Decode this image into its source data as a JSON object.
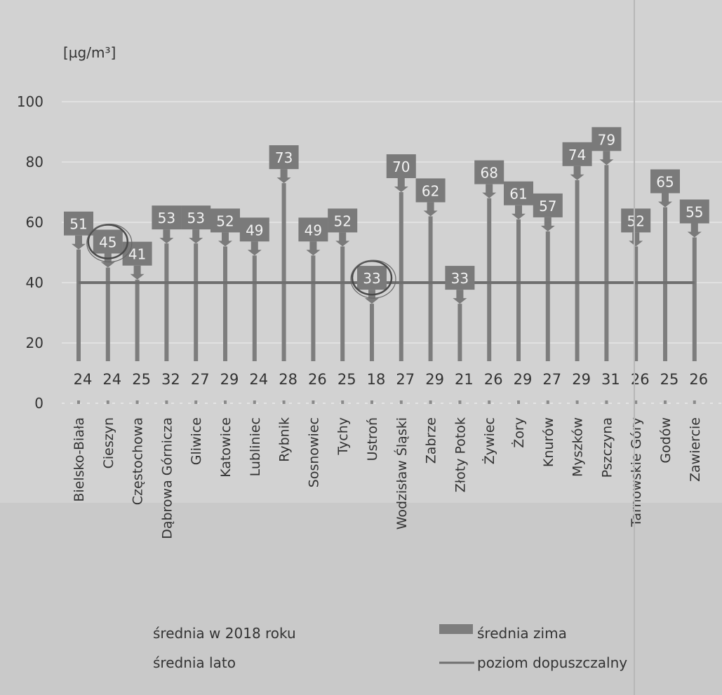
{
  "chart_data": {
    "type": "bar",
    "ylabel": "[µg/m³]",
    "ylim": [
      0,
      100
    ],
    "yticks": [
      0,
      20,
      40,
      60,
      80,
      100
    ],
    "grid": true,
    "categories": [
      "Bielsko-Biała",
      "Cieszyn",
      "Częstochowa",
      "Dąbrowa Górnicza",
      "Gliwice",
      "Katowice",
      "Lubliniec",
      "Rybnik",
      "Sosnowiec",
      "Tychy",
      "Ustroń",
      "Wodzisław Śląski",
      "Zabrze",
      "Złoty Potok",
      "Żywiec",
      "Żory",
      "Knurów",
      "Myszków",
      "Pszczyna",
      "Tarnowskie Góry",
      "Godów",
      "Zawiercie"
    ],
    "series": [
      {
        "name": "średnia zima",
        "values": [
          51,
          45,
          41,
          53,
          53,
          52,
          49,
          73,
          49,
          52,
          33,
          70,
          62,
          33,
          68,
          61,
          57,
          74,
          79,
          52,
          65,
          55
        ]
      },
      {
        "name": "średnia lato",
        "values": [
          24,
          24,
          25,
          32,
          27,
          29,
          24,
          28,
          26,
          25,
          18,
          27,
          29,
          21,
          26,
          29,
          27,
          29,
          31,
          26,
          25,
          26
        ]
      }
    ],
    "winter_labels": [
      "51",
      "45",
      "41",
      "53",
      "53",
      "52",
      "49",
      "73",
      "49",
      "52",
      "33",
      "70",
      "62",
      "33",
      "68",
      "61",
      "57",
      "74",
      "79",
      "52",
      "65",
      "55"
    ],
    "summer_labels": [
      "24",
      "24",
      "25",
      "32",
      "27",
      "29",
      "24",
      "28",
      "26",
      "25",
      "18",
      "27",
      "29",
      "21",
      "26",
      "29",
      "27",
      "29",
      "31",
      "26",
      "25",
      "26"
    ],
    "reference_line": {
      "name": "poziom dopuszczalny",
      "value": 40
    },
    "legend": {
      "position": "bottom",
      "items": [
        {
          "label": "średnia w 2018 roku",
          "type": "swatch-none"
        },
        {
          "label": "średnia zima",
          "type": "bar"
        },
        {
          "label": "średnia lato",
          "type": "swatch-none"
        },
        {
          "label": "poziom dopuszczalny",
          "type": "line"
        }
      ]
    },
    "colors": {
      "bar": "#7d7d7d",
      "label_box": "#7a7a7a",
      "line": "#6f6f6f",
      "grid": "#e6e6e6",
      "background": "#c9c9c9"
    },
    "circled_points": [
      "Cieszyn",
      "Ustroń"
    ]
  }
}
